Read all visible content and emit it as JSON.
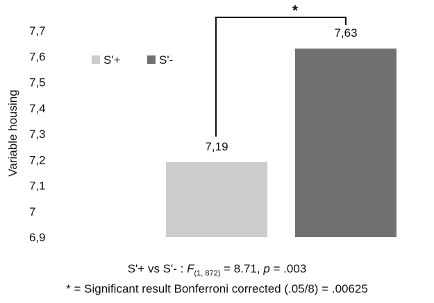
{
  "chart_data": {
    "type": "bar",
    "categories": [
      "S'+",
      "S'-"
    ],
    "values": [
      7.19,
      7.63
    ],
    "data_labels": [
      "7,19",
      "7,63"
    ],
    "colors": [
      "#cccccc",
      "#707070"
    ],
    "ylabel": "Variable housing",
    "ylim": [
      6.9,
      7.7
    ],
    "yticks": [
      6.9,
      7.0,
      7.1,
      7.2,
      7.3,
      7.4,
      7.5,
      7.6,
      7.7
    ],
    "ytick_labels": [
      "6,9",
      "7",
      "7,1",
      "7,2",
      "7,3",
      "7,4",
      "7,5",
      "7,6",
      "7,7"
    ],
    "grid": false,
    "legend": {
      "position": "top-left",
      "entries": [
        "S'+",
        "S'-"
      ]
    },
    "significance": {
      "marker": "*"
    }
  },
  "caption": {
    "line1_prefix": "S'+ vs S'- : ",
    "stat_symbol": "F",
    "stat_df": "(1, 872)",
    "stat_value": " = 8.71, ",
    "p_symbol": "p",
    "p_value": " = .003",
    "line2": "* = Significant result Bonferroni corrected (.05/8) = .00625"
  }
}
